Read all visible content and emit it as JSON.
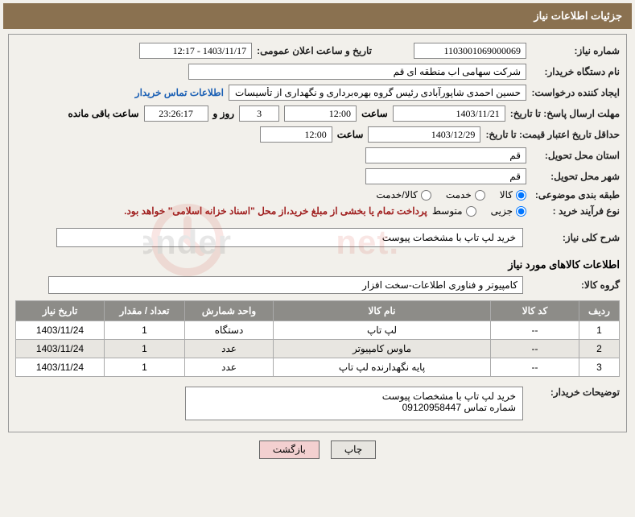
{
  "header": {
    "title": "جزئیات اطلاعات نیاز"
  },
  "fields": {
    "need_no_label": "شماره نیاز:",
    "need_no": "1103001069000069",
    "announce_label": "تاریخ و ساعت اعلان عمومی:",
    "announce": "1403/11/17 - 12:17",
    "buyer_org_label": "نام دستگاه خریدار:",
    "buyer_org": "شرکت سهامی اب منطقه ای قم",
    "requester_label": "ایجاد کننده درخواست:",
    "requester": "حسین احمدی شاپورآبادی رئیس گروه بهره‌برداری و نگهداری از تأسیسات آبی  ن",
    "contact_link": "اطلاعات تماس خریدار",
    "deadline_send_label": "مهلت ارسال پاسخ: تا تاریخ:",
    "deadline_date": "1403/11/21",
    "time_label": "ساعت",
    "deadline_time": "12:00",
    "days_remaining": "3",
    "days_remaining_suffix": "روز و",
    "hours_remaining": "23:26:17",
    "remaining_suffix": "ساعت باقی مانده",
    "valid_until_label": "حداقل تاریخ اعتبار قیمت: تا تاریخ:",
    "valid_date": "1403/12/29",
    "valid_time": "12:00",
    "province_label": "استان محل تحویل:",
    "province": "قم",
    "city_label": "شهر محل تحویل:",
    "city": "قم",
    "subject_cat_label": "طبقه بندی موضوعی:",
    "cat_goods": "کالا",
    "cat_service": "خدمت",
    "cat_goods_service": "کالا/خدمت",
    "proc_type_label": "نوع فرآیند خرید :",
    "proc_partial": "جزیی",
    "proc_medium": "متوسط",
    "proc_note": "پرداخت تمام یا بخشی از مبلغ خرید،از محل \"اسناد خزانه اسلامی\" خواهد بود.",
    "overall_desc_label": "شرح کلی نیاز:",
    "overall_desc": "خرید لپ تاپ با مشخصات پیوست",
    "goods_info_title": "اطلاعات کالاهای مورد نیاز",
    "goods_group_label": "گروه کالا:",
    "goods_group": "کامپیوتر و فناوری اطلاعات-سخت افزار",
    "buyer_notes_label": "توضیحات خریدار:",
    "buyer_notes_line1": "خرید لپ تاپ با مشخصات پیوست",
    "buyer_notes_line2": "شماره تماس 09120958447"
  },
  "table": {
    "headers": {
      "row": "ردیف",
      "code": "کد کالا",
      "name": "نام کالا",
      "unit": "واحد شمارش",
      "qty": "تعداد / مقدار",
      "date": "تاریخ نیاز"
    },
    "rows": [
      {
        "idx": "1",
        "code": "--",
        "name": "لپ تاپ",
        "unit": "دستگاه",
        "qty": "1",
        "date": "1403/11/24"
      },
      {
        "idx": "2",
        "code": "--",
        "name": "ماوس کامپیوتر",
        "unit": "عدد",
        "qty": "1",
        "date": "1403/11/24"
      },
      {
        "idx": "3",
        "code": "--",
        "name": "پایه نگهدارنده لپ تاپ",
        "unit": "عدد",
        "qty": "1",
        "date": "1403/11/24"
      }
    ]
  },
  "buttons": {
    "print": "چاپ",
    "back": "بازگشت"
  },
  "watermark": {
    "text": "AriaTender.net",
    "accent_color": "#d13c2e",
    "text_color": "#444"
  },
  "colors": {
    "header_bg": "#8a7150",
    "panel_bg": "#f2f0eb",
    "th_bg": "#8d8c88",
    "border": "#888"
  }
}
